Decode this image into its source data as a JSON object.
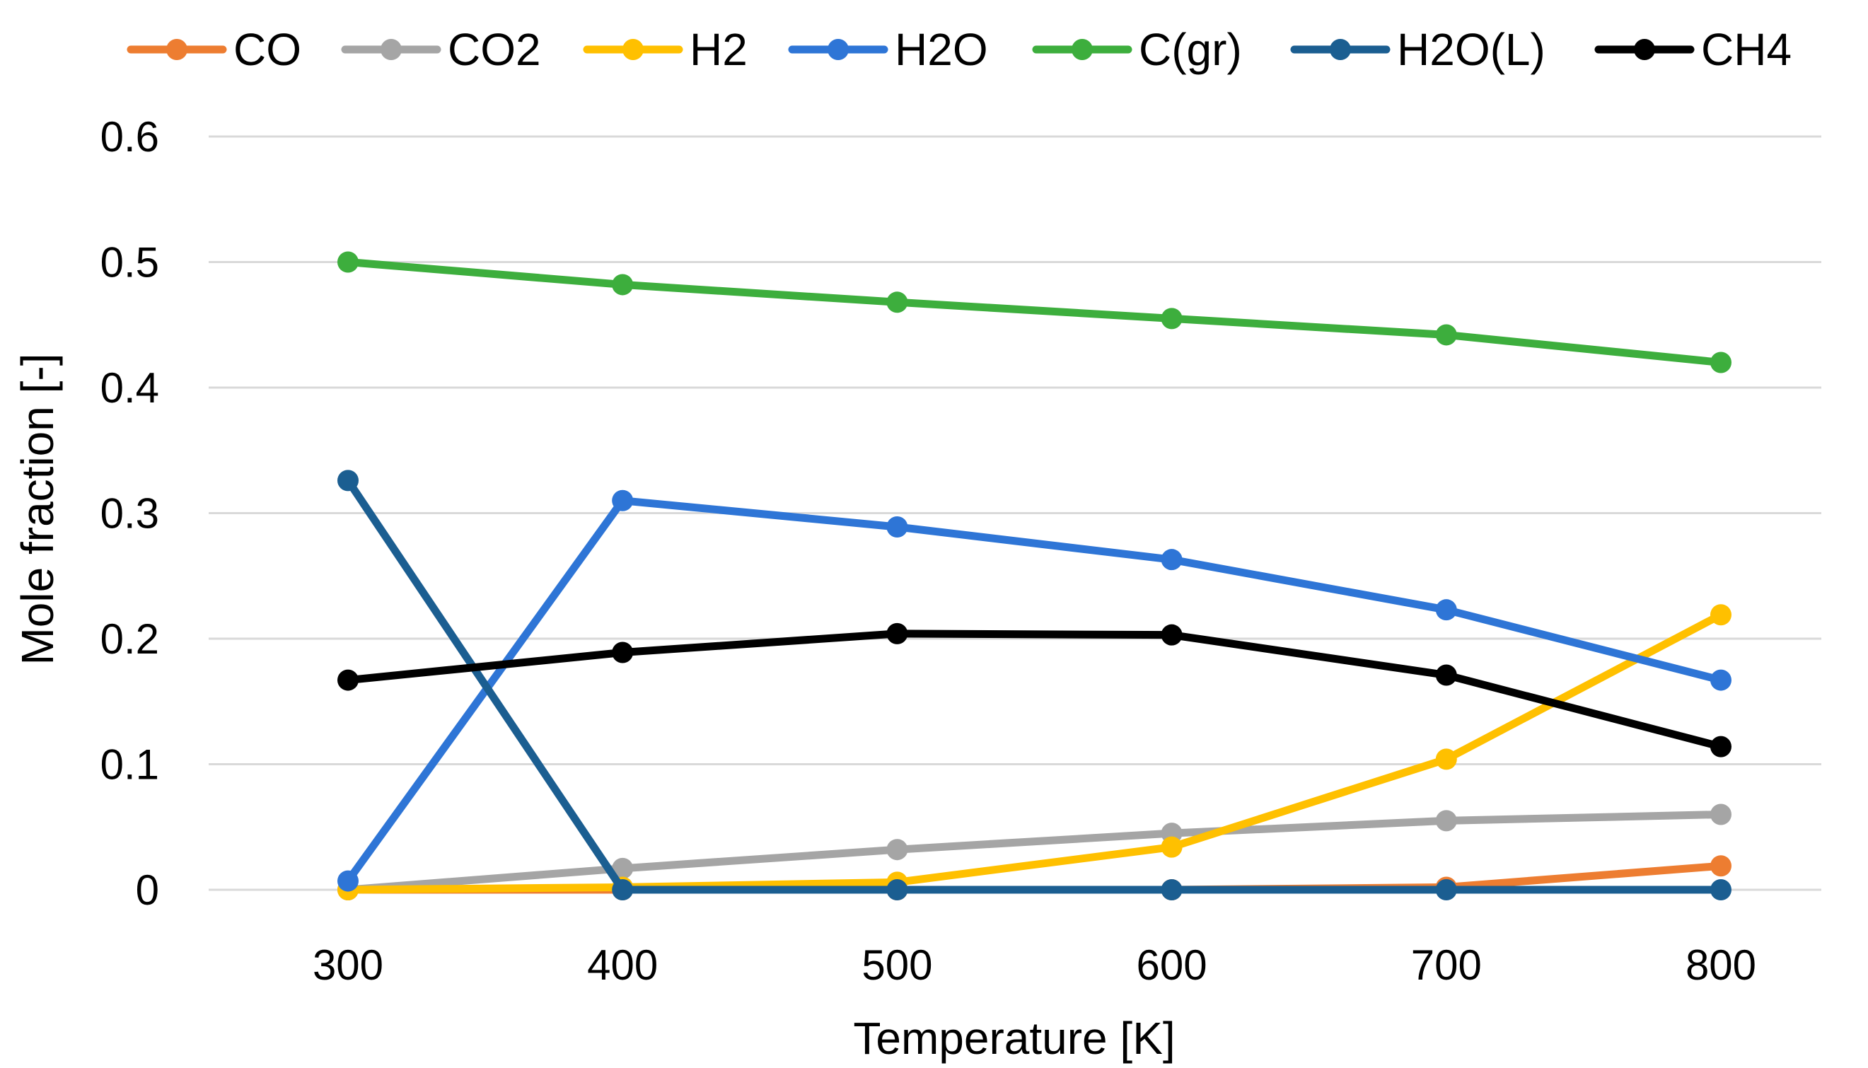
{
  "chart_data": {
    "type": "line",
    "title": "",
    "xlabel": "Temperature [K]",
    "ylabel": "Mole fraction [-]",
    "x": [
      300,
      400,
      500,
      600,
      700,
      800
    ],
    "x_tick_labels": [
      "300",
      "400",
      "500",
      "600",
      "700",
      "800"
    ],
    "ylim": [
      0,
      0.6
    ],
    "y_ticks": [
      0,
      0.1,
      0.2,
      0.3,
      0.4,
      0.5,
      0.6
    ],
    "y_tick_labels": [
      "0",
      "0.1",
      "0.2",
      "0.3",
      "0.4",
      "0.5",
      "0.6"
    ],
    "grid": true,
    "legend_position": "top",
    "series": [
      {
        "name": "CO",
        "color": "#ED7D31",
        "values": [
          0,
          0,
          0,
          0,
          0.002,
          0.019
        ]
      },
      {
        "name": "CO2",
        "color": "#A5A5A5",
        "values": [
          0,
          0.017,
          0.032,
          0.045,
          0.055,
          0.06
        ]
      },
      {
        "name": "H2",
        "color": "#FFC000",
        "values": [
          0,
          0.002,
          0.006,
          0.034,
          0.104,
          0.219
        ]
      },
      {
        "name": "H2O",
        "color": "#2E75D6",
        "values": [
          0.007,
          0.31,
          0.289,
          0.263,
          0.223,
          0.167
        ]
      },
      {
        "name": "C(gr)",
        "color": "#3DAE3D",
        "values": [
          0.5,
          0.482,
          0.468,
          0.455,
          0.442,
          0.42
        ]
      },
      {
        "name": "H2O(L)",
        "color": "#1B5E91",
        "values": [
          0.326,
          0,
          0,
          0,
          0,
          0
        ]
      },
      {
        "name": "CH4",
        "color": "#000000",
        "values": [
          0.167,
          0.189,
          0.204,
          0.203,
          0.171,
          0.114
        ]
      }
    ]
  }
}
